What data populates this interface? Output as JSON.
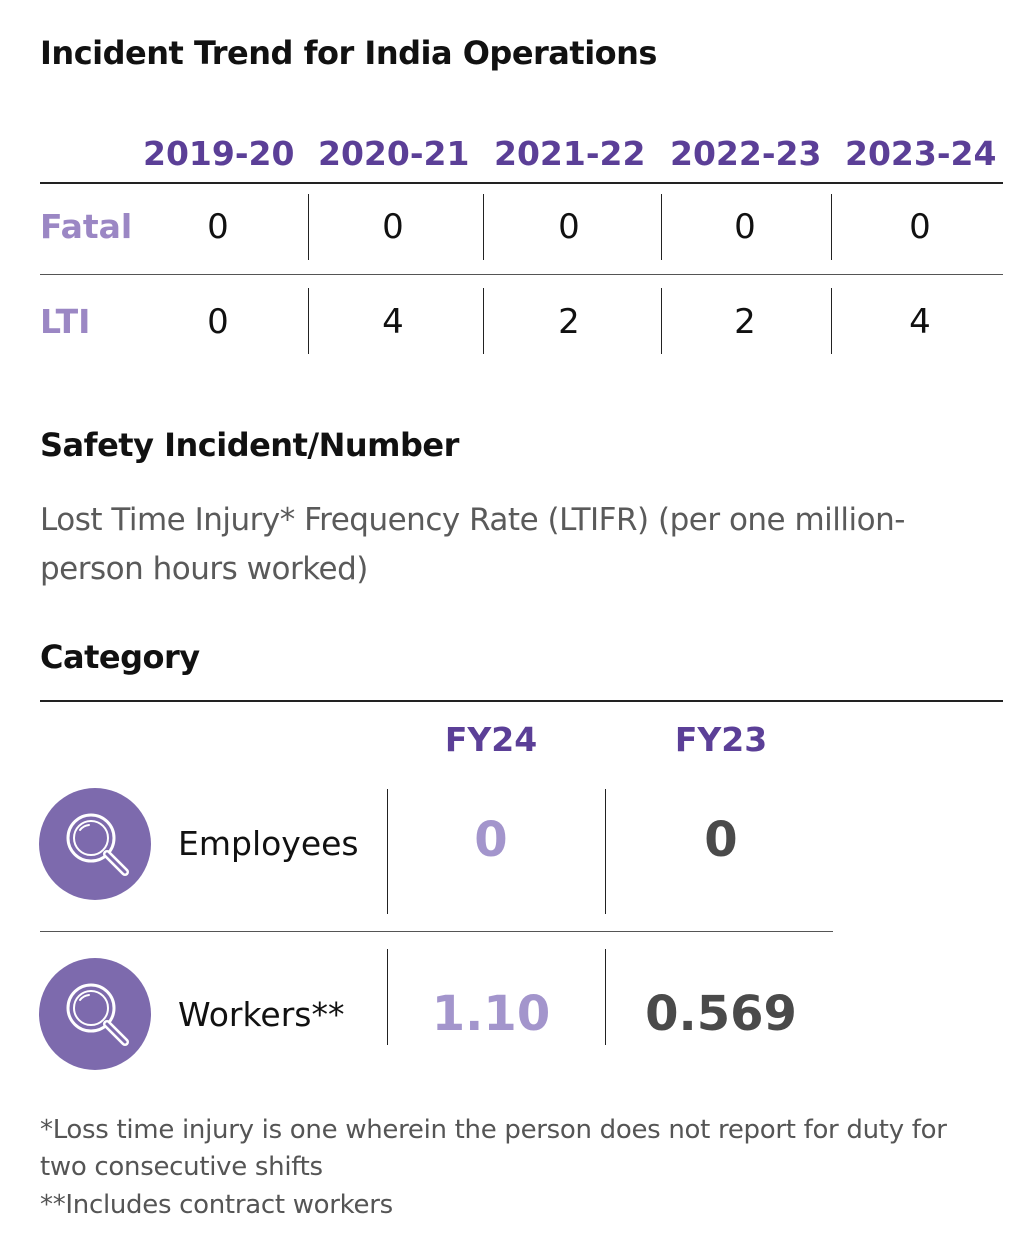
{
  "incident_trend": {
    "title": "Incident Trend for India Operations",
    "years": [
      "2019-20",
      "2020-21",
      "2021-22",
      "2022-23",
      "2023-24"
    ],
    "rows": [
      {
        "label": "Fatal",
        "values": [
          "0",
          "0",
          "0",
          "0",
          "0"
        ]
      },
      {
        "label": "LTI",
        "values": [
          "0",
          "4",
          "2",
          "2",
          "4"
        ]
      }
    ]
  },
  "safety": {
    "title": "Safety Incident/Number",
    "description": "Lost Time Injury* Frequency Rate (LTIFR) (per one million-person hours worked)",
    "category_label": "Category",
    "columns": [
      "FY24",
      "FY23"
    ],
    "rows": [
      {
        "label": "Employees",
        "icon": "magnifier-icon",
        "fy24": "0",
        "fy23": "0"
      },
      {
        "label": "Workers**",
        "icon": "magnifier-icon",
        "fy24": "1.10",
        "fy23": "0.569"
      }
    ]
  },
  "footnotes": {
    "note1": "*Loss time injury is one wherein the person does not report for duty for two consecutive shifts",
    "note2": "**Includes contract workers"
  },
  "colors": {
    "accent": "#5b3f97",
    "accent_light": "#9b87c4",
    "circle": "#7d6aad"
  }
}
